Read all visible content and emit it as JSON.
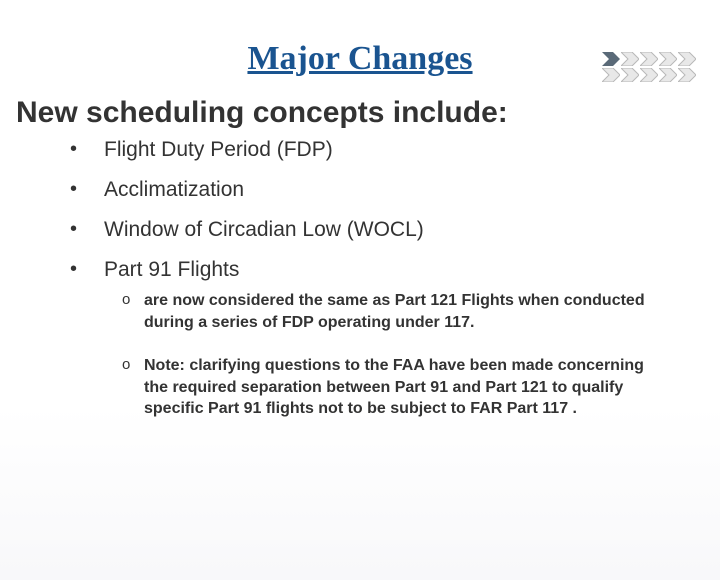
{
  "title": "Major Changes",
  "subtitle": "New scheduling concepts include:",
  "bullets": [
    {
      "label": "Flight Duty Period (FDP)"
    },
    {
      "label": "Acclimatization"
    },
    {
      "label": "Window of Circadian Low (WOCL)"
    },
    {
      "label": "Part 91 Flights",
      "sub": [
        "are now considered the same as Part 121 Flights when conducted during a series of FDP operating under 117.",
        "Note: clarifying questions to the FAA have been made concerning the required separation between Part 91 and Part 121 to qualify specific Part 91 flights not to be subject to FAR Part 117 ."
      ]
    }
  ],
  "colors": {
    "title": "#1a5490",
    "text": "#333333",
    "arrow_dark_fill": "#5a6a78",
    "arrow_light_fill": "#e8e8e8",
    "arrow_light_stroke": "#b8b8b8",
    "background": "#ffffff"
  },
  "typography": {
    "title_font": "Comic Sans MS",
    "title_size": 34,
    "subtitle_size": 30,
    "bullet_size": 21,
    "subbullet_size": 16,
    "subbullet_weight": "bold"
  },
  "logo": {
    "rows": 2,
    "arrows_per_row": 5,
    "dark_index": 0
  }
}
